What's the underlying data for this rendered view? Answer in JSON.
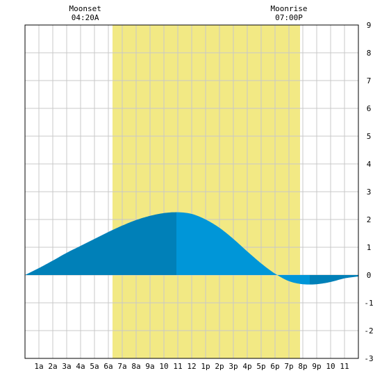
{
  "chart_data": {
    "type": "area",
    "title": "",
    "xlabel": "",
    "ylabel": "",
    "x_range_hours": [
      0,
      24
    ],
    "ylim": [
      -3,
      9
    ],
    "y_ticks": [
      -3,
      -2,
      -1,
      0,
      1,
      2,
      3,
      4,
      5,
      6,
      7,
      8,
      9
    ],
    "x_tick_labels": [
      "1a",
      "2a",
      "3a",
      "4a",
      "5a",
      "6a",
      "7a",
      "8a",
      "9a",
      "10",
      "11",
      "12",
      "1p",
      "2p",
      "3p",
      "4p",
      "5p",
      "6p",
      "7p",
      "8p",
      "9p",
      "10",
      "11"
    ],
    "grid": true,
    "daylight_hours": [
      6.3,
      19.8
    ],
    "events": [
      {
        "name": "Moonset",
        "time": "04:20A"
      },
      {
        "name": "Moonrise",
        "time": "07:00P"
      }
    ],
    "series": [
      {
        "x": [
          0,
          1,
          2,
          3,
          4,
          5,
          6,
          7,
          8,
          9,
          10,
          11,
          12,
          13,
          14,
          15,
          16,
          17,
          18,
          19,
          20,
          21,
          22,
          23,
          24
        ],
        "y": [
          0.0,
          0.25,
          0.52,
          0.8,
          1.05,
          1.3,
          1.55,
          1.78,
          1.98,
          2.13,
          2.23,
          2.26,
          2.2,
          2.0,
          1.7,
          1.3,
          0.85,
          0.42,
          0.05,
          -0.22,
          -0.33,
          -0.33,
          -0.25,
          -0.12,
          -0.05
        ]
      }
    ],
    "colors": {
      "daylight": "#f2e984",
      "tide_dark": "#0080b8",
      "tide_light": "#0096d8",
      "grid": "#c8c8c8",
      "frame": "#000000"
    }
  }
}
